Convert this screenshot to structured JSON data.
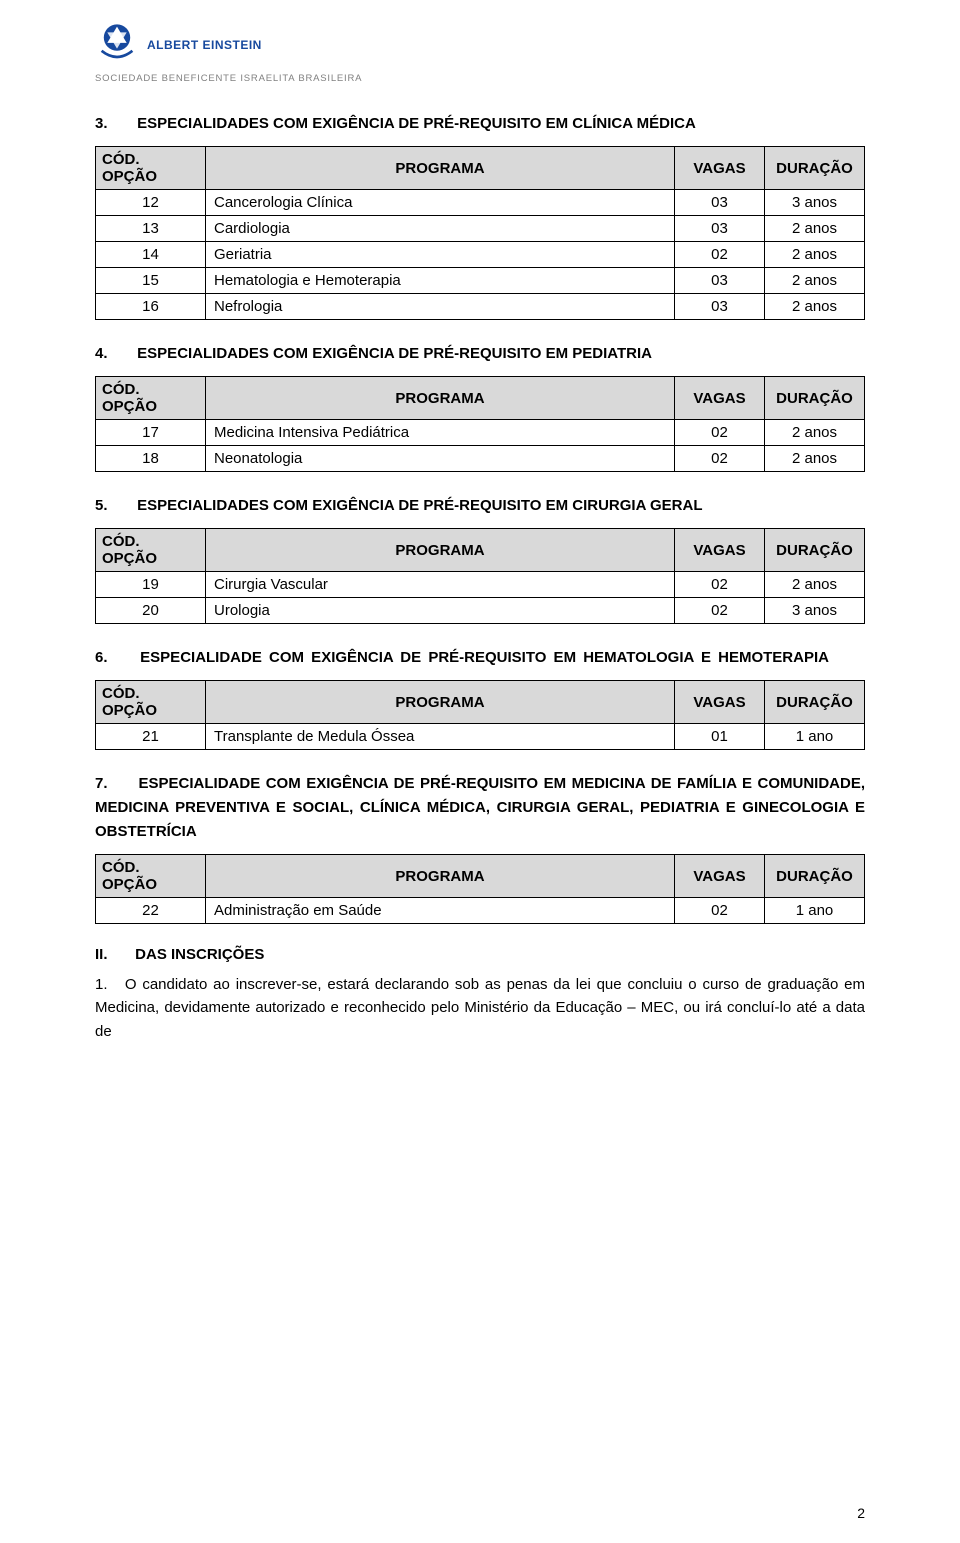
{
  "logo": {
    "name_line1": "ALBERT EINSTEIN",
    "name_line2": "SOCIEDADE BENEFICENTE ISRAELITA BRASILEIRA",
    "colors": {
      "primary": "#17499e",
      "secondary": "#808080"
    }
  },
  "columns": {
    "cod": "CÓD. OPÇÃO",
    "programa": "PROGRAMA",
    "vagas": "VAGAS",
    "duracao": "DURAÇÃO"
  },
  "sections": [
    {
      "num": "3.",
      "title": "ESPECIALIDADES COM EXIGÊNCIA DE PRÉ-REQUISITO EM CLÍNICA MÉDICA",
      "rows": [
        {
          "cod": "12",
          "prog": "Cancerologia Clínica",
          "vagas": "03",
          "dur": "3 anos"
        },
        {
          "cod": "13",
          "prog": "Cardiologia",
          "vagas": "03",
          "dur": "2 anos"
        },
        {
          "cod": "14",
          "prog": "Geriatria",
          "vagas": "02",
          "dur": "2 anos"
        },
        {
          "cod": "15",
          "prog": "Hematologia e Hemoterapia",
          "vagas": "03",
          "dur": "2 anos"
        },
        {
          "cod": "16",
          "prog": "Nefrologia",
          "vagas": "03",
          "dur": "2 anos"
        }
      ]
    },
    {
      "num": "4.",
      "title": "ESPECIALIDADES COM EXIGÊNCIA DE PRÉ-REQUISITO EM PEDIATRIA",
      "rows": [
        {
          "cod": "17",
          "prog": "Medicina Intensiva Pediátrica",
          "vagas": "02",
          "dur": "2 anos"
        },
        {
          "cod": "18",
          "prog": "Neonatologia",
          "vagas": "02",
          "dur": "2 anos"
        }
      ]
    },
    {
      "num": "5.",
      "title": "ESPECIALIDADES COM EXIGÊNCIA DE PRÉ-REQUISITO EM CIRURGIA GERAL",
      "rows": [
        {
          "cod": "19",
          "prog": "Cirurgia Vascular",
          "vagas": "02",
          "dur": "2 anos"
        },
        {
          "cod": "20",
          "prog": "Urologia",
          "vagas": "02",
          "dur": "3 anos"
        }
      ]
    },
    {
      "num": "6.",
      "title": "ESPECIALIDADE COM EXIGÊNCIA DE PRÉ-REQUISITO EM HEMATOLOGIA E HEMOTERAPIA",
      "wide": true,
      "rows": [
        {
          "cod": "21",
          "prog": "Transplante de Medula Óssea",
          "vagas": "01",
          "dur": "1 ano"
        }
      ]
    },
    {
      "num": "7.",
      "title": "ESPECIALIDADE COM EXIGÊNCIA DE PRÉ-REQUISITO EM MEDICINA DE FAMÍLIA E COMUNIDADE, MEDICINA PREVENTIVA E SOCIAL, CLÍNICA MÉDICA, CIRURGIA GERAL, PEDIATRIA E GINECOLOGIA E OBSTETRÍCIA",
      "rows": [
        {
          "cod": "22",
          "prog": "Administração em Saúde",
          "vagas": "02",
          "dur": "1 ano"
        }
      ]
    }
  ],
  "inscricoes": {
    "roman": "II.",
    "title": "DAS INSCRIÇÕES",
    "para_num": "1.",
    "para_text": "O candidato ao inscrever-se, estará declarando sob as penas da lei que concluiu o curso de graduação em Medicina, devidamente autorizado e reconhecido pelo Ministério da Educação – MEC, ou irá concluí-lo até a data de"
  },
  "page_number": "2",
  "table_style": {
    "header_bg": "#d9d9d9",
    "border_color": "#000000",
    "font_size_pt": 11
  }
}
